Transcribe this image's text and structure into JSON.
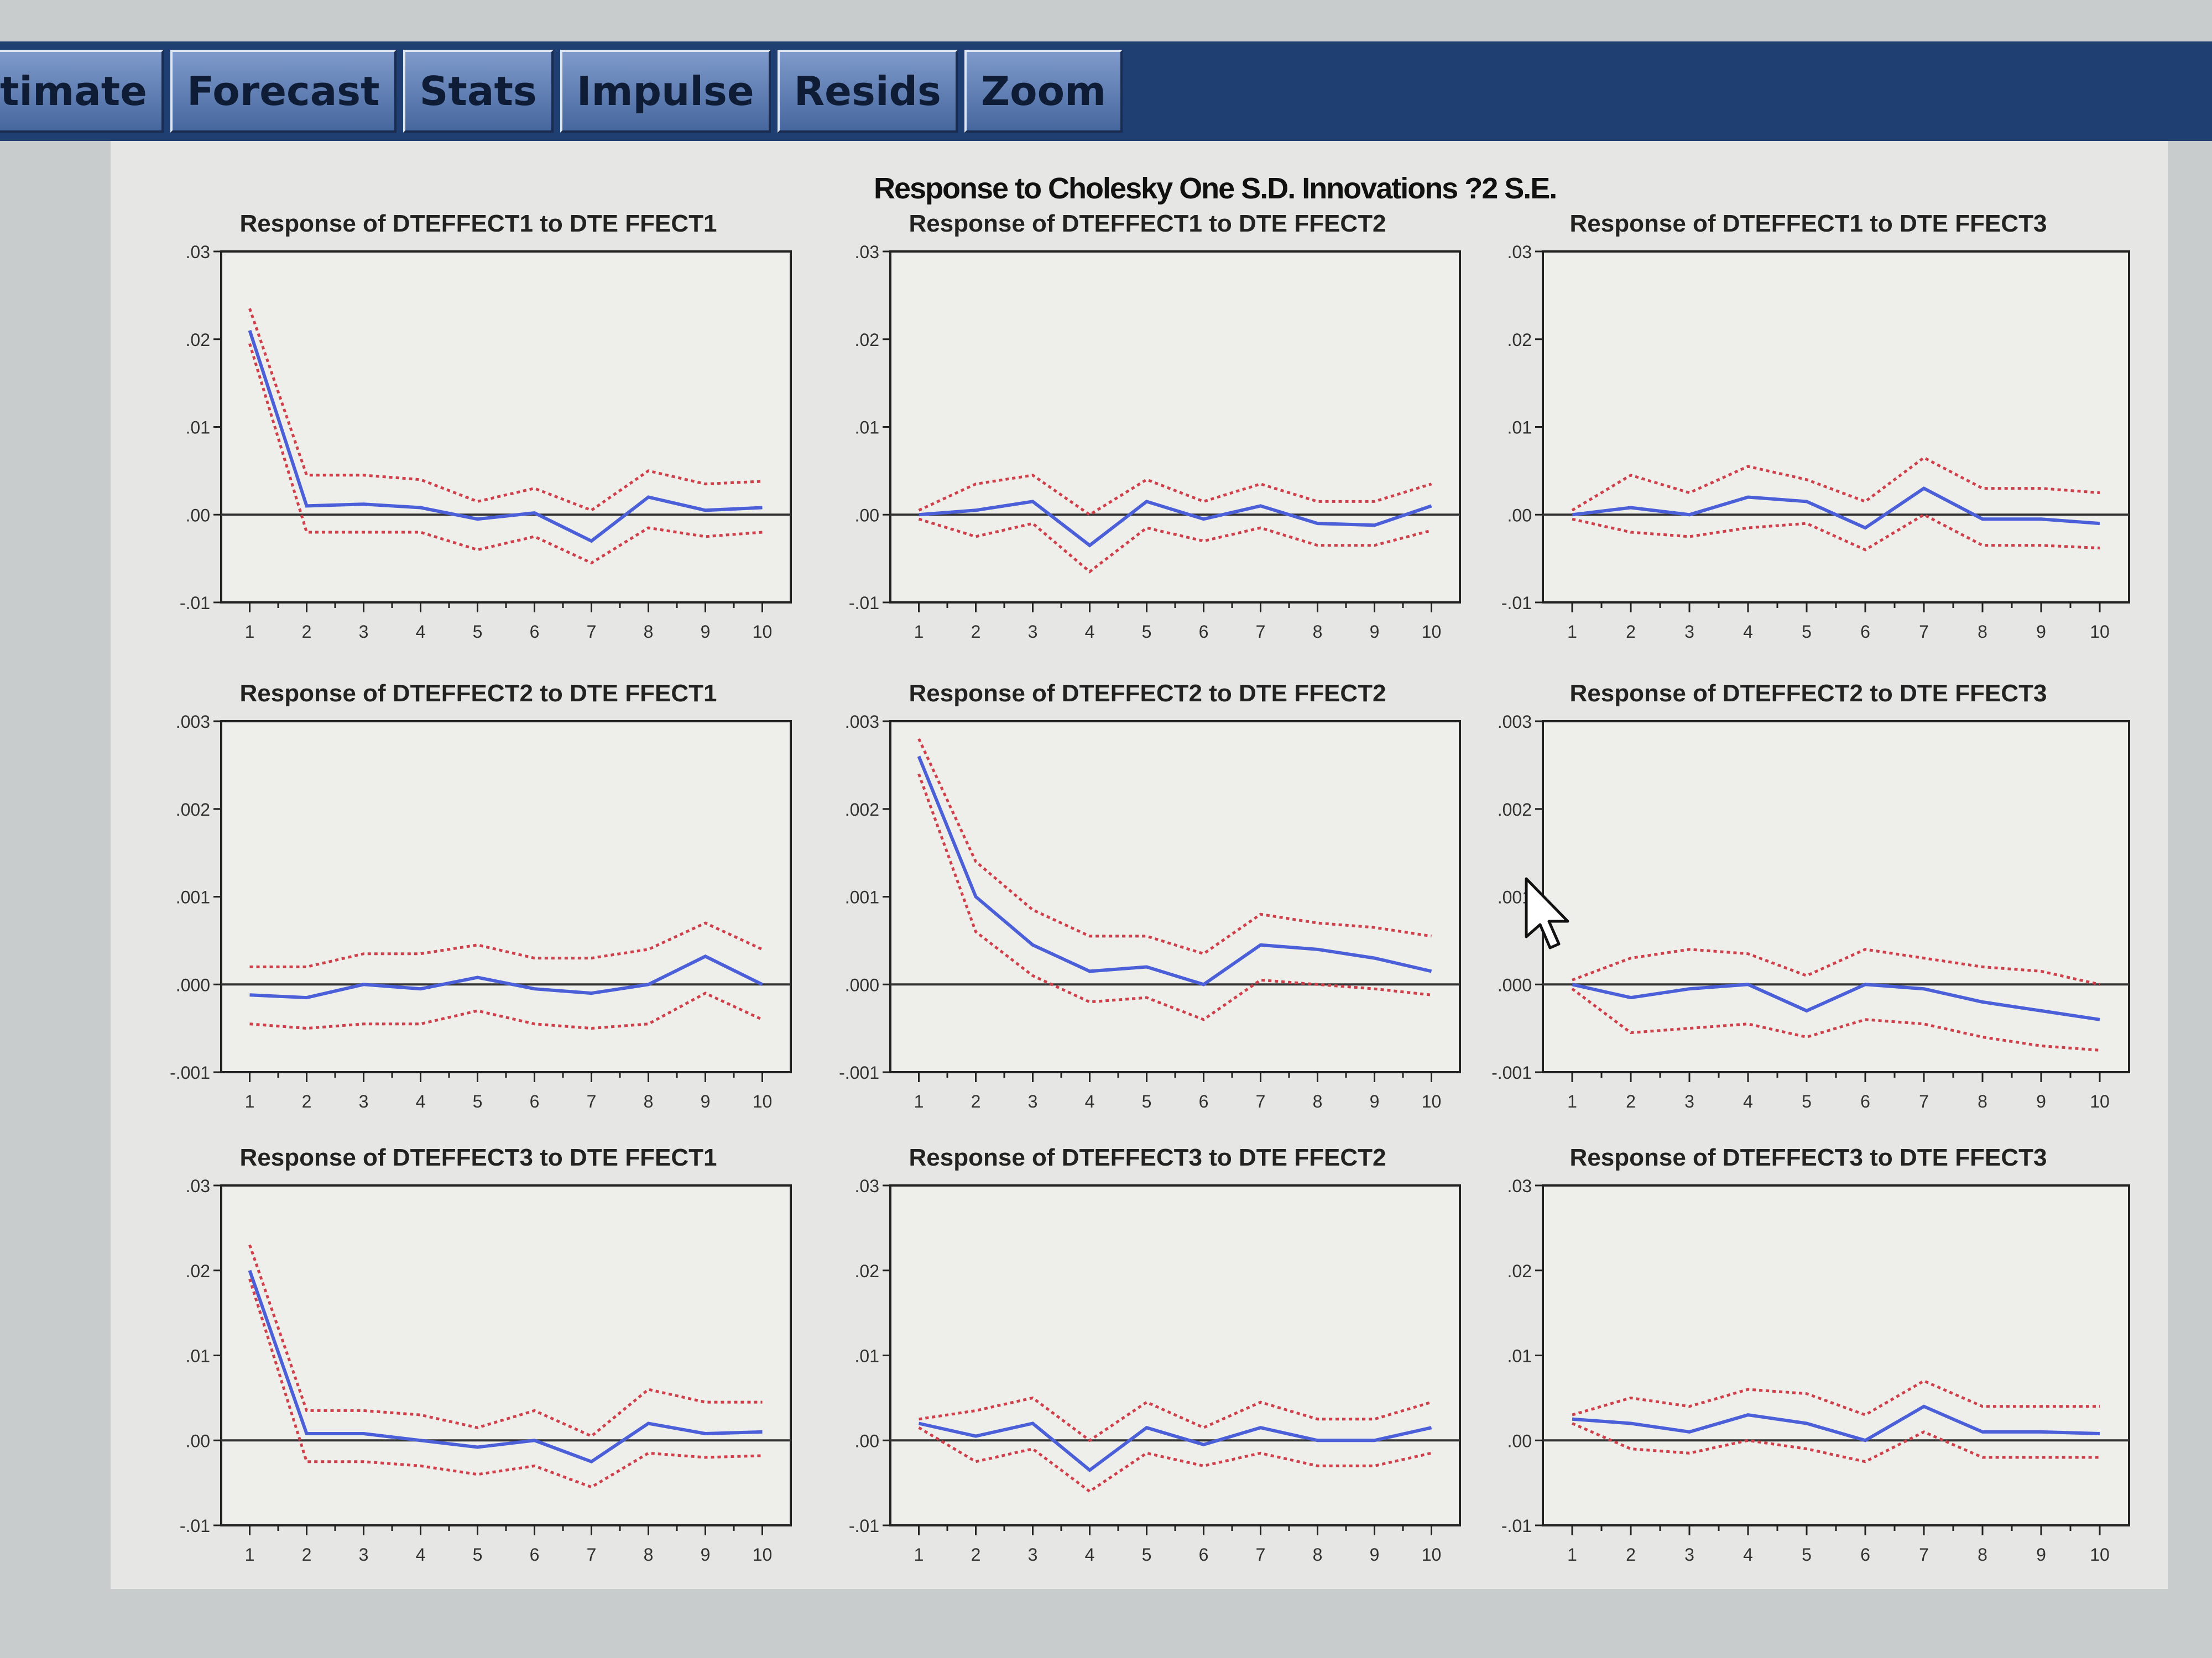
{
  "toolbar": {
    "tabs": [
      "timate",
      "Forecast",
      "Stats",
      "Impulse",
      "Resids",
      "Zoom"
    ]
  },
  "main_title": "Response to Cholesky One S.D. Innovations ?2 S.E.",
  "colors": {
    "response": "#4a5fd8",
    "bands": "#d0404a",
    "axis": "#222222",
    "zero_line": "#333333",
    "plot_bg": "#eeeeeb"
  },
  "icons": {
    "cursor": "mouse-pointer-icon"
  },
  "chart_data": [
    {
      "type": "line",
      "title": "Response of DTEFFECT1 to DTE FFECT1",
      "x": [
        1,
        2,
        3,
        4,
        5,
        6,
        7,
        8,
        9,
        10
      ],
      "ylim": [
        -0.01,
        0.03
      ],
      "yticks": [
        "-.01",
        ".00",
        ".01",
        ".02",
        ".03"
      ],
      "series": [
        {
          "role": "response",
          "values": [
            0.021,
            0.001,
            0.0012,
            0.0008,
            -0.0005,
            0.0002,
            -0.003,
            0.002,
            0.0005,
            0.0008
          ]
        },
        {
          "role": "upper",
          "values": [
            0.0235,
            0.0045,
            0.0045,
            0.004,
            0.0015,
            0.003,
            0.0005,
            0.005,
            0.0035,
            0.0038
          ]
        },
        {
          "role": "lower",
          "values": [
            0.0195,
            -0.002,
            -0.002,
            -0.002,
            -0.004,
            -0.0025,
            -0.0055,
            -0.0015,
            -0.0025,
            -0.002
          ]
        }
      ]
    },
    {
      "type": "line",
      "title": "Response of DTEFFECT1 to DTE FFECT2",
      "x": [
        1,
        2,
        3,
        4,
        5,
        6,
        7,
        8,
        9,
        10
      ],
      "ylim": [
        -0.01,
        0.03
      ],
      "yticks": [
        "-.01",
        ".00",
        ".01",
        ".02",
        ".03"
      ],
      "series": [
        {
          "role": "response",
          "values": [
            0.0,
            0.0005,
            0.0015,
            -0.0035,
            0.0015,
            -0.0005,
            0.001,
            -0.001,
            -0.0012,
            0.001
          ]
        },
        {
          "role": "upper",
          "values": [
            0.0005,
            0.0035,
            0.0045,
            0.0,
            0.004,
            0.0015,
            0.0035,
            0.0015,
            0.0015,
            0.0035
          ]
        },
        {
          "role": "lower",
          "values": [
            -0.0005,
            -0.0025,
            -0.001,
            -0.0065,
            -0.0015,
            -0.003,
            -0.0015,
            -0.0035,
            -0.0035,
            -0.0018
          ]
        }
      ]
    },
    {
      "type": "line",
      "title": "Response of DTEFFECT1 to DTE FFECT3",
      "x": [
        1,
        2,
        3,
        4,
        5,
        6,
        7,
        8,
        9,
        10
      ],
      "ylim": [
        -0.01,
        0.03
      ],
      "yticks": [
        "-.01",
        ".00",
        ".01",
        ".02",
        ".03"
      ],
      "series": [
        {
          "role": "response",
          "values": [
            0.0,
            0.0008,
            0.0,
            0.002,
            0.0015,
            -0.0015,
            0.003,
            -0.0005,
            -0.0005,
            -0.001
          ]
        },
        {
          "role": "upper",
          "values": [
            0.0005,
            0.0045,
            0.0025,
            0.0055,
            0.004,
            0.0015,
            0.0065,
            0.003,
            0.003,
            0.0025
          ]
        },
        {
          "role": "lower",
          "values": [
            -0.0005,
            -0.002,
            -0.0025,
            -0.0015,
            -0.001,
            -0.004,
            0.0,
            -0.0035,
            -0.0035,
            -0.0038
          ]
        }
      ]
    },
    {
      "type": "line",
      "title": "Response of DTEFFECT2 to DTE FFECT1",
      "x": [
        1,
        2,
        3,
        4,
        5,
        6,
        7,
        8,
        9,
        10
      ],
      "ylim": [
        -0.001,
        0.003
      ],
      "yticks": [
        "-.001",
        ".000",
        ".001",
        ".002",
        ".003"
      ],
      "series": [
        {
          "role": "response",
          "values": [
            -0.00012,
            -0.00015,
            0.0,
            -5e-05,
            8e-05,
            -5e-05,
            -0.0001,
            0.0,
            0.00032,
            0.0
          ]
        },
        {
          "role": "upper",
          "values": [
            0.0002,
            0.0002,
            0.00035,
            0.00035,
            0.00045,
            0.0003,
            0.0003,
            0.0004,
            0.0007,
            0.0004
          ]
        },
        {
          "role": "lower",
          "values": [
            -0.00045,
            -0.0005,
            -0.00045,
            -0.00045,
            -0.0003,
            -0.00045,
            -0.0005,
            -0.00045,
            -0.0001,
            -0.0004
          ]
        }
      ]
    },
    {
      "type": "line",
      "title": "Response of DTEFFECT2 to DTE FFECT2",
      "x": [
        1,
        2,
        3,
        4,
        5,
        6,
        7,
        8,
        9,
        10
      ],
      "ylim": [
        -0.001,
        0.003
      ],
      "yticks": [
        "-.001",
        ".000",
        ".001",
        ".002",
        ".003"
      ],
      "series": [
        {
          "role": "response",
          "values": [
            0.0026,
            0.001,
            0.00045,
            0.00015,
            0.0002,
            0.0,
            0.00045,
            0.0004,
            0.0003,
            0.00015
          ]
        },
        {
          "role": "upper",
          "values": [
            0.0028,
            0.0014,
            0.00085,
            0.00055,
            0.00055,
            0.00035,
            0.0008,
            0.0007,
            0.00065,
            0.00055
          ]
        },
        {
          "role": "lower",
          "values": [
            0.0024,
            0.0006,
            0.0001,
            -0.0002,
            -0.00015,
            -0.0004,
            5e-05,
            0.0,
            -5e-05,
            -0.00012
          ]
        }
      ]
    },
    {
      "type": "line",
      "title": "Response of DTEFFECT2 to DTE FFECT3",
      "x": [
        1,
        2,
        3,
        4,
        5,
        6,
        7,
        8,
        9,
        10
      ],
      "ylim": [
        -0.001,
        0.003
      ],
      "yticks": [
        "-.001",
        ".000",
        ".001",
        ".002",
        ".003"
      ],
      "series": [
        {
          "role": "response",
          "values": [
            0.0,
            -0.00015,
            -5e-05,
            0.0,
            -0.0003,
            0.0,
            -5e-05,
            -0.0002,
            -0.0003,
            -0.0004
          ]
        },
        {
          "role": "upper",
          "values": [
            5e-05,
            0.0003,
            0.0004,
            0.00035,
            0.0001,
            0.0004,
            0.0003,
            0.0002,
            0.00015,
            0.0
          ]
        },
        {
          "role": "lower",
          "values": [
            -5e-05,
            -0.00055,
            -0.0005,
            -0.00045,
            -0.0006,
            -0.0004,
            -0.00045,
            -0.0006,
            -0.0007,
            -0.00075
          ]
        }
      ]
    },
    {
      "type": "line",
      "title": "Response of DTEFFECT3 to DTE FFECT1",
      "x": [
        1,
        2,
        3,
        4,
        5,
        6,
        7,
        8,
        9,
        10
      ],
      "ylim": [
        -0.01,
        0.03
      ],
      "yticks": [
        "-.01",
        ".00",
        ".01",
        ".02",
        ".03"
      ],
      "series": [
        {
          "role": "response",
          "values": [
            0.02,
            0.0008,
            0.0008,
            0.0,
            -0.0008,
            0.0,
            -0.0025,
            0.002,
            0.0008,
            0.001
          ]
        },
        {
          "role": "upper",
          "values": [
            0.023,
            0.0035,
            0.0035,
            0.003,
            0.0015,
            0.0035,
            0.0005,
            0.006,
            0.0045,
            0.0045
          ]
        },
        {
          "role": "lower",
          "values": [
            0.019,
            -0.0025,
            -0.0025,
            -0.003,
            -0.004,
            -0.003,
            -0.0055,
            -0.0015,
            -0.002,
            -0.0018
          ]
        }
      ]
    },
    {
      "type": "line",
      "title": "Response of DTEFFECT3 to DTE FFECT2",
      "x": [
        1,
        2,
        3,
        4,
        5,
        6,
        7,
        8,
        9,
        10
      ],
      "ylim": [
        -0.01,
        0.03
      ],
      "yticks": [
        "-.01",
        ".00",
        ".01",
        ".02",
        ".03"
      ],
      "series": [
        {
          "role": "response",
          "values": [
            0.002,
            0.0005,
            0.002,
            -0.0035,
            0.0015,
            -0.0005,
            0.0015,
            0.0,
            0.0,
            0.0015
          ]
        },
        {
          "role": "upper",
          "values": [
            0.0025,
            0.0035,
            0.005,
            0.0,
            0.0045,
            0.0015,
            0.0045,
            0.0025,
            0.0025,
            0.0045
          ]
        },
        {
          "role": "lower",
          "values": [
            0.0015,
            -0.0025,
            -0.001,
            -0.006,
            -0.0015,
            -0.003,
            -0.0015,
            -0.003,
            -0.003,
            -0.0015
          ]
        }
      ]
    },
    {
      "type": "line",
      "title": "Response of DTEFFECT3 to DTE FFECT3",
      "x": [
        1,
        2,
        3,
        4,
        5,
        6,
        7,
        8,
        9,
        10
      ],
      "ylim": [
        -0.01,
        0.03
      ],
      "yticks": [
        "-.01",
        ".00",
        ".01",
        ".02",
        ".03"
      ],
      "series": [
        {
          "role": "response",
          "values": [
            0.0025,
            0.002,
            0.001,
            0.003,
            0.002,
            0.0,
            0.004,
            0.001,
            0.001,
            0.0008
          ]
        },
        {
          "role": "upper",
          "values": [
            0.003,
            0.005,
            0.004,
            0.006,
            0.0055,
            0.003,
            0.007,
            0.004,
            0.004,
            0.004
          ]
        },
        {
          "role": "lower",
          "values": [
            0.002,
            -0.001,
            -0.0015,
            0.0,
            -0.001,
            -0.0025,
            0.001,
            -0.002,
            -0.002,
            -0.002
          ]
        }
      ]
    }
  ]
}
